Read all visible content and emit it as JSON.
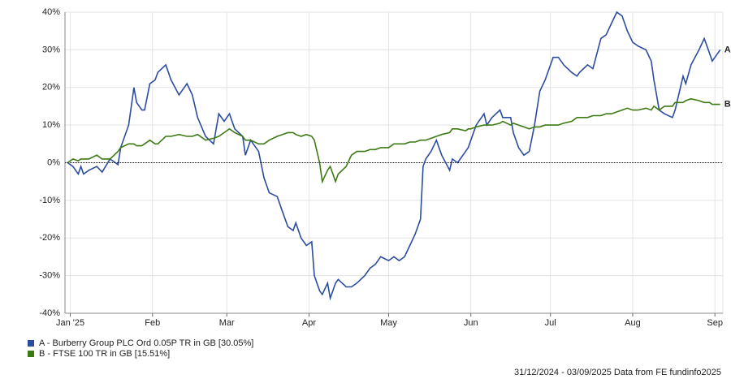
{
  "chart_data": {
    "type": "line",
    "x": [
      0,
      2,
      4,
      5,
      6,
      8,
      11,
      13,
      16,
      19,
      20,
      23,
      25,
      26,
      28,
      29,
      31,
      33,
      34,
      37,
      39,
      42,
      45,
      47,
      49,
      52,
      55,
      57,
      59,
      61,
      63,
      66,
      67,
      69,
      72,
      74,
      76,
      79,
      81,
      83,
      85,
      86,
      88,
      90,
      92,
      93,
      95,
      96,
      98,
      99,
      101,
      102,
      105,
      107,
      109,
      112,
      114,
      116,
      118,
      121,
      123,
      125,
      127,
      129,
      131,
      133,
      134,
      135,
      137,
      139,
      141,
      144,
      145,
      147,
      150,
      151,
      152,
      154,
      157,
      158,
      160,
      163,
      164,
      167,
      168,
      170,
      172,
      174,
      176,
      178,
      180,
      183,
      185,
      187,
      190,
      192,
      193,
      196,
      198,
      201,
      203,
      205,
      207,
      209,
      211,
      213,
      215,
      218,
      220,
      221,
      223,
      225,
      228,
      229,
      232,
      233,
      235,
      238,
      240,
      242,
      243,
      246
    ],
    "series": [
      {
        "name": "A - Burberry Group PLC Ord 0.05P TR in GB [30.05%]",
        "end_label": "A",
        "color": "#2b4c9f",
        "values": [
          0,
          -1,
          -3,
          -1,
          -3,
          -2,
          -1,
          -2.5,
          1,
          -0.5,
          4,
          10,
          20,
          16,
          14,
          14,
          21,
          22,
          24,
          26,
          22,
          18,
          21,
          18,
          12,
          7,
          5,
          13,
          11,
          13,
          9,
          7,
          2,
          6,
          3,
          -4,
          -8,
          -9,
          -13,
          -17,
          -18,
          -16,
          -20,
          -22,
          -21,
          -30,
          -34,
          -35,
          -32,
          -36,
          -32,
          -31,
          -33,
          -33,
          -32,
          -30,
          -28,
          -27,
          -25,
          -26,
          -25,
          -26,
          -25,
          -22,
          -19,
          -15,
          -1,
          1,
          3,
          6,
          2,
          -2,
          1,
          0,
          3,
          4,
          6,
          10,
          13,
          10,
          12,
          14,
          12,
          12,
          8,
          4,
          2,
          3,
          10,
          19,
          22,
          28,
          28,
          26,
          24,
          23,
          24,
          26,
          25,
          33,
          34,
          37,
          40,
          39,
          35,
          32,
          31,
          30,
          27,
          22,
          14,
          13,
          12,
          14,
          23,
          21,
          26,
          30,
          33,
          29,
          27,
          30
        ]
      },
      {
        "name": "B - FTSE 100 TR in GB [15.51%]",
        "end_label": "B",
        "color": "#3d7a12",
        "values": [
          0,
          1,
          0.5,
          1,
          1,
          1,
          2,
          1,
          1,
          3,
          4,
          5,
          5,
          4.5,
          4.5,
          5,
          6,
          5,
          5,
          7,
          7,
          7.5,
          7,
          7,
          7.5,
          6,
          6.5,
          7,
          8,
          9,
          8,
          7,
          6,
          6,
          5,
          5,
          6,
          7,
          7.5,
          8,
          8,
          7.5,
          7,
          7.5,
          7,
          6,
          0,
          -5,
          -2,
          -1,
          -5,
          -3,
          -1,
          2,
          3,
          3,
          3.5,
          3.5,
          4,
          4,
          5,
          5,
          5,
          5.5,
          5.5,
          6,
          6,
          6,
          6.5,
          7,
          7.5,
          8,
          9,
          9,
          8.5,
          9,
          9,
          9.5,
          10,
          10,
          10,
          10.5,
          11,
          10,
          10.5,
          10,
          9.5,
          9,
          9.5,
          9.5,
          10,
          10,
          10,
          10.5,
          11,
          12,
          12,
          12,
          12.5,
          12.5,
          13,
          13,
          13.5,
          14,
          14.5,
          14,
          14,
          14.5,
          14,
          15,
          14,
          15,
          15,
          16,
          16,
          16.5,
          17,
          16.5,
          16,
          16,
          15.5,
          15.5
        ]
      }
    ],
    "xlim": [
      -1,
      247
    ],
    "xticks": [
      {
        "value": 1,
        "label": "Jan '25"
      },
      {
        "value": 32,
        "label": "Feb"
      },
      {
        "value": 60,
        "label": "Mar"
      },
      {
        "value": 91,
        "label": "Apr"
      },
      {
        "value": 121,
        "label": "May"
      },
      {
        "value": 152,
        "label": "Jun"
      },
      {
        "value": 182,
        "label": "Jul"
      },
      {
        "value": 213,
        "label": "Aug"
      },
      {
        "value": 244,
        "label": "Sep"
      }
    ],
    "ylim": [
      -40,
      40
    ],
    "yticks": [
      {
        "value": -40,
        "label": "-40%"
      },
      {
        "value": -30,
        "label": "-30%"
      },
      {
        "value": -20,
        "label": "-20%"
      },
      {
        "value": -10,
        "label": "-10%"
      },
      {
        "value": 0,
        "label": "0%"
      },
      {
        "value": 10,
        "label": "10%"
      },
      {
        "value": 20,
        "label": "20%"
      },
      {
        "value": 30,
        "label": "30%"
      },
      {
        "value": 40,
        "label": "40%"
      }
    ],
    "grid": true,
    "footer": "31/12/2024 - 03/09/2025 Data from FE fundinfo2025"
  }
}
